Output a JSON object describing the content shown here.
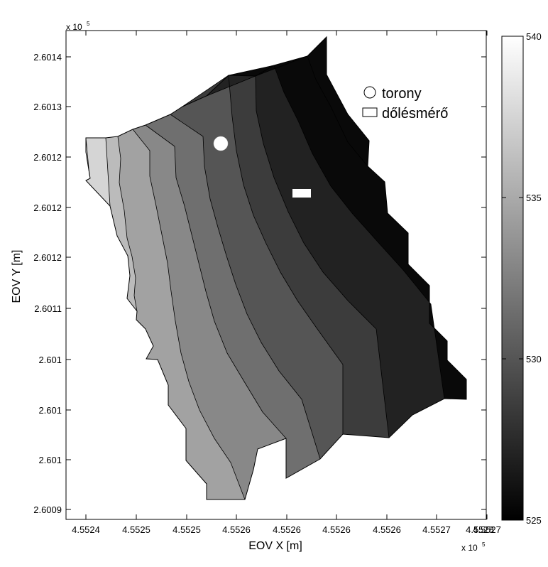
{
  "chart_data": {
    "type": "heatmap",
    "subtype": "filled-contour",
    "title": "",
    "xlabel": "EOV X [m]",
    "ylabel": "EOV Y [m]",
    "x_exponent_label": "x 10",
    "x_exponent_power": "5",
    "y_exponent_label": "x 10",
    "y_exponent_power": "5",
    "x_tick_labels": [
      "4.5524",
      "4.5525",
      "4.5525",
      "4.5526",
      "4.5526",
      "4.5526",
      "4.5526",
      "4.5527",
      "4.5527",
      "4.5528"
    ],
    "y_tick_labels": [
      "2.6009",
      "2.601",
      "2.601",
      "2.601",
      "2.6011",
      "2.6012",
      "2.6012",
      "2.6012",
      "2.6013",
      "2.6014"
    ],
    "colorbar": {
      "colormap": "gray",
      "range": [
        525,
        540
      ],
      "tick_labels": [
        "525",
        "530",
        "535",
        "540"
      ]
    },
    "contour_levels": [
      539,
      537.5,
      536,
      534.5,
      533,
      531.5,
      530,
      528.5,
      527,
      525.5
    ],
    "legend": {
      "position": "top-right",
      "items": [
        {
          "marker": "circle",
          "label": "torony"
        },
        {
          "marker": "rectangle",
          "label": "dőlésmérő"
        }
      ]
    },
    "markers": [
      {
        "name": "torony",
        "shape": "circle",
        "color": "#ffffff"
      },
      {
        "name": "dőlésmérő",
        "shape": "rectangle",
        "color": "#ffffff"
      }
    ],
    "grid": false
  }
}
